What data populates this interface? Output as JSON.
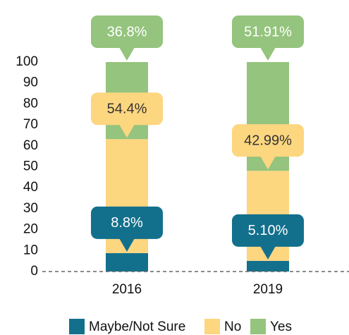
{
  "chart_data": {
    "type": "stacked_bar",
    "categories": [
      "2016",
      "2019"
    ],
    "series": [
      {
        "name": "Maybe/Not Sure",
        "color": "#13708c",
        "label_color": "#ffffff",
        "values": [
          8.8,
          5.1
        ],
        "value_labels": [
          "8.8%",
          "5.10%"
        ]
      },
      {
        "name": "No",
        "color": "#fdd680",
        "label_color": "#333333",
        "values": [
          54.4,
          42.99
        ],
        "value_labels": [
          "54.4%",
          "42.99%"
        ]
      },
      {
        "name": "Yes",
        "color": "#94c47d",
        "label_color": "#ffffff",
        "values": [
          36.8,
          51.91
        ],
        "value_labels": [
          "36.8%",
          "51.91%"
        ]
      }
    ],
    "ylim": [
      0,
      100
    ],
    "yticks": [
      0,
      10,
      20,
      30,
      40,
      50,
      60,
      70,
      80,
      90,
      100
    ]
  }
}
